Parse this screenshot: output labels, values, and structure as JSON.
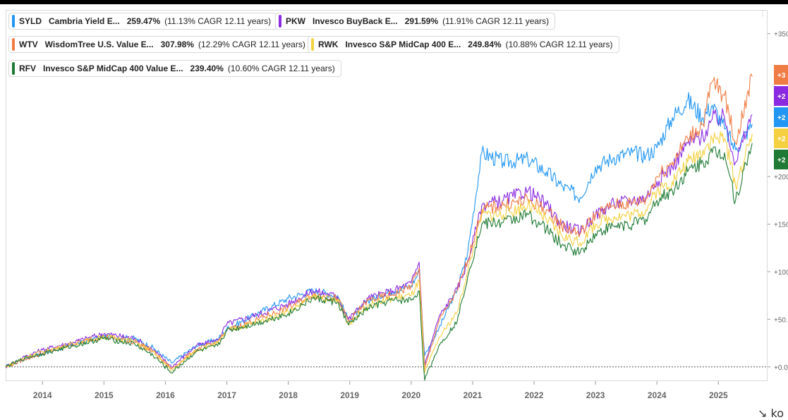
{
  "legend": [
    {
      "ticker": "SYLD",
      "name": "Cambria Yield E...",
      "ret": "259.47%",
      "cagr": "(11.13% CAGR 12.11 years)",
      "color": "#2196f3"
    },
    {
      "ticker": "PKW",
      "name": "Invesco BuyBack E...",
      "ret": "291.59%",
      "cagr": "(11.91% CAGR 12.11 years)",
      "color": "#8a2be2"
    },
    {
      "ticker": "WTV",
      "name": "WisdomTree U.S. Value E...",
      "ret": "307.98%",
      "cagr": "(12.29% CAGR 12.11 years)",
      "color": "#f07c45"
    },
    {
      "ticker": "RWK",
      "name": "Invesco S&P MidCap 400 E...",
      "ret": "249.84%",
      "cagr": "(10.88% CAGR 12.11 years)",
      "color": "#f5d142"
    },
    {
      "ticker": "RFV",
      "name": "Invesco S&P MidCap 400 Value E...",
      "ret": "239.40%",
      "cagr": "(10.60% CAGR 12.11 years)",
      "color": "#1e7a34"
    }
  ],
  "end_badges": [
    {
      "text": "+3",
      "color": "#f07c45"
    },
    {
      "text": "+2",
      "color": "#8a2be2"
    },
    {
      "text": "+2",
      "color": "#2196f3"
    },
    {
      "text": "+2",
      "color": "#f5d142"
    },
    {
      "text": "+2",
      "color": "#1e7a34"
    }
  ],
  "logo": "↘ ko",
  "dots": "⋮",
  "chart_data": {
    "type": "line",
    "title": "",
    "xlabel": "",
    "ylabel": "",
    "x_ticks": [
      "2014",
      "2015",
      "2016",
      "2017",
      "2018",
      "2019",
      "2020",
      "2021",
      "2022",
      "2023",
      "2024",
      "2025"
    ],
    "y_ticks": [
      "+0.0",
      "+50.",
      "+100",
      "+150",
      "+200",
      "+350"
    ],
    "xlim": [
      2013.4,
      2025.8
    ],
    "ylim": [
      -15,
      375
    ],
    "x": [
      2013.4,
      2013.75,
      2014.0,
      2014.5,
      2015.0,
      2015.5,
      2015.8,
      2016.1,
      2016.5,
      2016.85,
      2017.0,
      2017.5,
      2018.0,
      2018.4,
      2018.8,
      2018.98,
      2019.3,
      2019.7,
      2020.0,
      2020.13,
      2020.22,
      2020.45,
      2020.75,
      2020.92,
      2021.15,
      2021.5,
      2021.9,
      2022.2,
      2022.45,
      2022.75,
      2023.0,
      2023.3,
      2023.6,
      2023.82,
      2024.0,
      2024.25,
      2024.5,
      2024.75,
      2024.9,
      2025.1,
      2025.28,
      2025.55
    ],
    "series": [
      {
        "name": "SYLD",
        "color": "#2196f3",
        "values": [
          0,
          10,
          14,
          23,
          32,
          30,
          20,
          4,
          22,
          29,
          40,
          56,
          72,
          80,
          75,
          48,
          70,
          80,
          85,
          100,
          12,
          40,
          82,
          120,
          225,
          215,
          218,
          205,
          190,
          178,
          210,
          220,
          225,
          222,
          230,
          262,
          280,
          262,
          275,
          250,
          228,
          255
        ]
      },
      {
        "name": "PKW",
        "color": "#8a2be2",
        "values": [
          0,
          12,
          18,
          26,
          35,
          30,
          18,
          0,
          22,
          28,
          45,
          55,
          66,
          80,
          74,
          50,
          72,
          80,
          88,
          110,
          2,
          52,
          82,
          110,
          170,
          175,
          185,
          170,
          150,
          142,
          160,
          172,
          175,
          178,
          195,
          210,
          235,
          242,
          260,
          262,
          215,
          265
        ]
      },
      {
        "name": "WTV",
        "color": "#f07c45",
        "values": [
          0,
          9,
          14,
          24,
          32,
          26,
          16,
          -2,
          18,
          26,
          38,
          50,
          62,
          76,
          72,
          48,
          70,
          76,
          85,
          104,
          -2,
          48,
          80,
          112,
          165,
          170,
          175,
          165,
          148,
          140,
          160,
          170,
          172,
          176,
          200,
          215,
          240,
          255,
          300,
          285,
          235,
          305
        ]
      },
      {
        "name": "RWK",
        "color": "#f5d142",
        "values": [
          0,
          11,
          16,
          24,
          32,
          27,
          16,
          -4,
          18,
          25,
          38,
          47,
          58,
          74,
          70,
          45,
          65,
          72,
          75,
          90,
          -6,
          30,
          58,
          100,
          160,
          160,
          170,
          155,
          138,
          130,
          150,
          158,
          160,
          165,
          185,
          195,
          215,
          228,
          240,
          240,
          190,
          245
        ]
      },
      {
        "name": "RFV",
        "color": "#1e7a34",
        "values": [
          0,
          10,
          14,
          22,
          30,
          24,
          12,
          -6,
          16,
          22,
          38,
          46,
          56,
          72,
          68,
          44,
          62,
          70,
          70,
          80,
          -14,
          22,
          48,
          95,
          150,
          152,
          160,
          145,
          128,
          120,
          140,
          148,
          150,
          155,
          175,
          185,
          205,
          215,
          225,
          225,
          175,
          235
        ]
      }
    ]
  }
}
